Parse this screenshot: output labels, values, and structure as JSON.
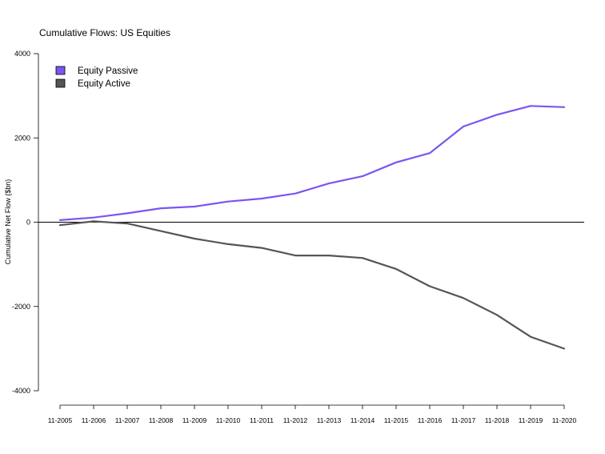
{
  "chart_data": {
    "type": "line",
    "title": "Cumulative Flows: US Equities",
    "xlabel": "",
    "ylabel": "Cumulative Net Flow ($bn)",
    "ylim": [
      -4000,
      4000
    ],
    "yticks": [
      -4000,
      -2000,
      0,
      2000,
      4000
    ],
    "categories": [
      "11-2005",
      "11-2006",
      "11-2007",
      "11-2008",
      "11-2009",
      "11-2010",
      "11-2011",
      "11-2012",
      "11-2013",
      "11-2014",
      "11-2015",
      "11-2016",
      "11-2017",
      "11-2018",
      "11-2019",
      "11-2020"
    ],
    "zero_line": true,
    "grid": false,
    "legend_position": "top-left",
    "series": [
      {
        "name": "Equity Passive",
        "color": "#7b55f0",
        "values": [
          50,
          110,
          210,
          330,
          370,
          490,
          560,
          680,
          920,
          1090,
          1420,
          1640,
          2270,
          2550,
          2760,
          2730
        ]
      },
      {
        "name": "Equity Active",
        "color": "#555555",
        "values": [
          -70,
          20,
          -30,
          -210,
          -390,
          -520,
          -610,
          -790,
          -790,
          -850,
          -1110,
          -1520,
          -1800,
          -2200,
          -2720,
          -3000
        ]
      }
    ]
  }
}
